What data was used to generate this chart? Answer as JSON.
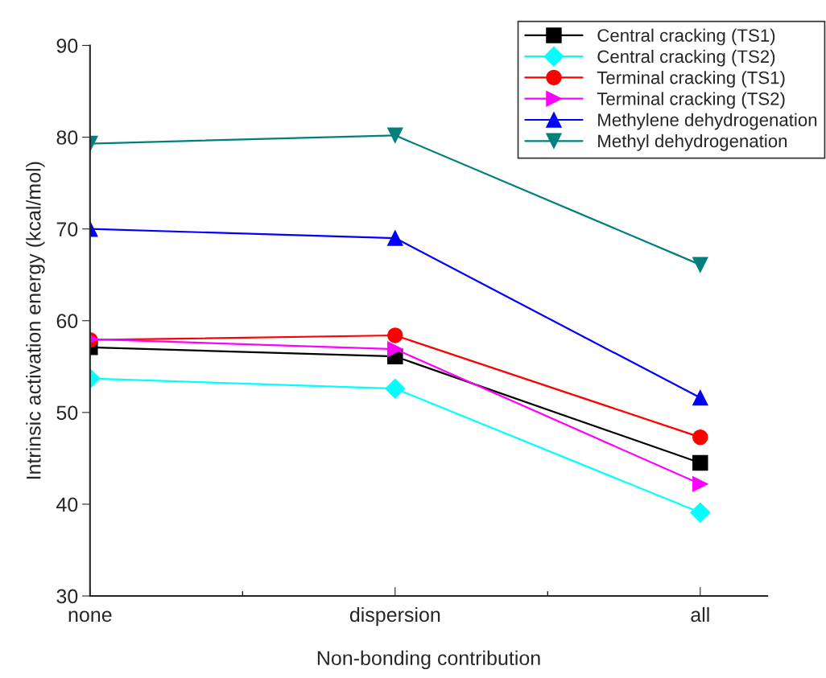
{
  "chart_data": {
    "type": "line",
    "xlabel": "Non-bonding contribution",
    "ylabel": "Intrinsic activation energy (kcal/mol)",
    "categories": [
      "none",
      "dispersion",
      "all"
    ],
    "ylim": [
      30,
      90
    ],
    "yticks": [
      30,
      40,
      50,
      60,
      70,
      80,
      90
    ],
    "grid": false,
    "legend": "top right",
    "line_style": "solid",
    "series": [
      {
        "name": "Central cracking (TS1)",
        "color": "#000000",
        "marker": "square",
        "values": [
          57.1,
          56.1,
          44.5
        ]
      },
      {
        "name": "Central cracking (TS2)",
        "color": "#00ffff",
        "marker": "diamond",
        "values": [
          53.7,
          52.6,
          39.1
        ]
      },
      {
        "name": "Terminal cracking (TS1)",
        "color": "#ff0000",
        "marker": "circle",
        "values": [
          57.9,
          58.4,
          47.3
        ]
      },
      {
        "name": "Terminal cracking (TS2)",
        "color": "#ff00ff",
        "marker": "triangle-right",
        "values": [
          58.0,
          56.9,
          42.2
        ]
      },
      {
        "name": "Methylene dehydrogenation",
        "color": "#0000ff",
        "marker": "triangle",
        "values": [
          70.0,
          69.0,
          51.6
        ]
      },
      {
        "name": "Methyl dehydrogenation",
        "color": "#007f7f",
        "marker": "triangle-down",
        "values": [
          79.3,
          80.2,
          66.1
        ]
      }
    ]
  }
}
